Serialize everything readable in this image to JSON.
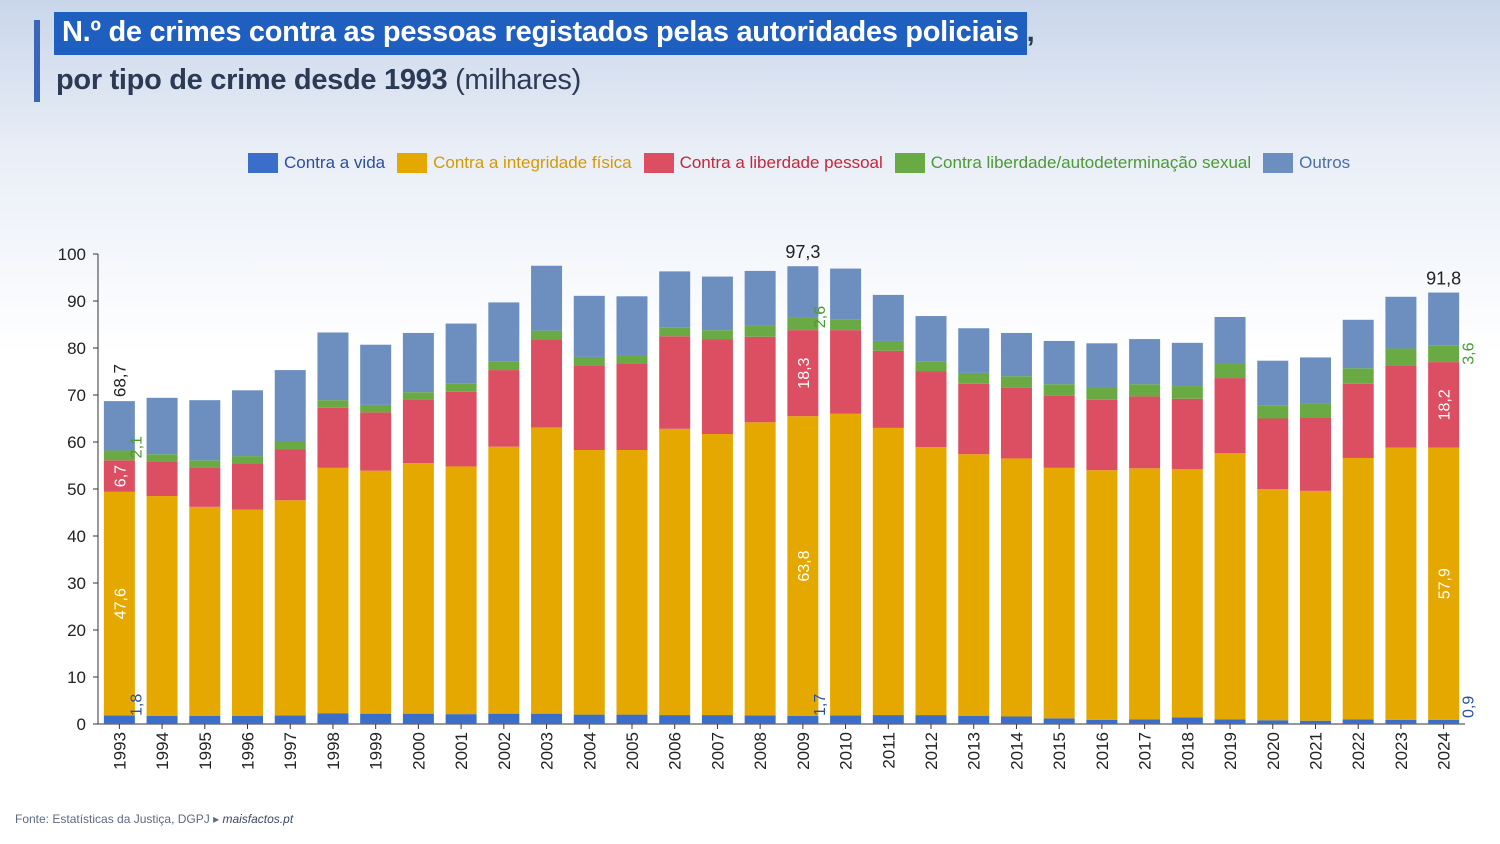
{
  "title": {
    "highlight": "N.º de crimes contra as pessoas registados pelas autoridades policiais",
    "highlight_suffix": ",",
    "line2_bold": "por tipo de crime desde 1993",
    "line2_unit": "(milhares)"
  },
  "source": {
    "text": "Fonte: Estatísticas da Justiça, DGPJ ▸",
    "site": "maisfactos.pt"
  },
  "chart_data": {
    "type": "bar",
    "stacked": true,
    "title": "N.º de crimes contra as pessoas registados pelas autoridades policiais, por tipo de crime desde 1993",
    "ylabel": "(milhares)",
    "ylim": [
      0,
      100
    ],
    "yticks": [
      "0",
      "10",
      "20",
      "30",
      "40",
      "50",
      "60",
      "70",
      "80",
      "90",
      "100"
    ],
    "categories": [
      "1993",
      "1994",
      "1995",
      "1996",
      "1997",
      "1998",
      "1999",
      "2000",
      "2001",
      "2002",
      "2003",
      "2004",
      "2005",
      "2006",
      "2007",
      "2008",
      "2009",
      "2010",
      "2011",
      "2012",
      "2013",
      "2014",
      "2015",
      "2016",
      "2017",
      "2018",
      "2019",
      "2020",
      "2021",
      "2022",
      "2023",
      "2024"
    ],
    "legend_position": "top",
    "grid": false,
    "series": [
      {
        "name": "Contra a vida",
        "color": "#3a6ec8",
        "label_color": "#2a4fa0",
        "values": [
          1.8,
          1.7,
          1.7,
          1.7,
          1.8,
          2.3,
          2.2,
          2.2,
          2.1,
          2.2,
          2.2,
          2.0,
          2.0,
          1.9,
          1.9,
          1.8,
          1.7,
          1.8,
          1.9,
          1.9,
          1.7,
          1.6,
          1.2,
          0.9,
          1.0,
          1.4,
          1.0,
          0.8,
          0.7,
          1.0,
          0.9,
          0.9
        ]
      },
      {
        "name": "Contra a integridade física",
        "color": "#e5a800",
        "label_color": "#d49a00",
        "values": [
          47.6,
          46.8,
          44.5,
          43.9,
          45.8,
          52.2,
          51.7,
          53.3,
          52.7,
          56.8,
          60.9,
          56.3,
          56.3,
          60.9,
          59.8,
          62.4,
          63.8,
          64.2,
          61.1,
          57.0,
          55.7,
          54.9,
          53.3,
          53.1,
          53.4,
          52.8,
          56.6,
          49.2,
          48.9,
          55.6,
          57.9,
          57.9
        ]
      },
      {
        "name": "Contra a liberdade pessoal",
        "color": "#dc4e61",
        "label_color": "#c4273c",
        "values": [
          6.7,
          7.4,
          8.4,
          9.9,
          10.9,
          12.8,
          12.4,
          13.6,
          15.9,
          16.3,
          18.6,
          18.0,
          18.3,
          19.7,
          20.2,
          18.2,
          18.3,
          17.8,
          16.4,
          16.1,
          15.0,
          15.0,
          15.3,
          15.0,
          15.3,
          15.0,
          16.0,
          15.0,
          15.6,
          15.8,
          17.5,
          18.2
        ]
      },
      {
        "name": "Contra liberdade/autodeterminação sexual",
        "color": "#6aaa45",
        "label_color": "#4a9a35",
        "values": [
          2.1,
          1.5,
          1.5,
          1.5,
          1.5,
          1.6,
          1.6,
          1.5,
          1.7,
          1.9,
          2.0,
          1.8,
          1.8,
          1.9,
          1.9,
          2.3,
          2.6,
          2.3,
          2.1,
          2.2,
          2.3,
          2.5,
          2.5,
          2.6,
          2.6,
          2.7,
          3.0,
          2.8,
          2.9,
          3.3,
          3.6,
          3.6
        ]
      },
      {
        "name": "Outros",
        "color": "#6d8fbf",
        "label_color": "#4a6fa8",
        "values": [
          10.5,
          12.0,
          12.8,
          14.0,
          15.3,
          14.4,
          12.8,
          12.6,
          12.8,
          12.5,
          13.8,
          13.0,
          12.6,
          11.9,
          11.4,
          11.7,
          11.0,
          10.8,
          9.8,
          9.6,
          9.5,
          9.2,
          9.2,
          9.4,
          9.6,
          9.2,
          10.0,
          9.5,
          9.9,
          10.3,
          11.0,
          11.2
        ]
      }
    ],
    "total_labels": [
      {
        "year": "1993",
        "text": "68,7"
      },
      {
        "year": "2009",
        "text": "97,3"
      },
      {
        "year": "2024",
        "text": "91,8"
      }
    ],
    "segment_labels": [
      {
        "year": "1993",
        "series": 0,
        "text": "1,8"
      },
      {
        "year": "1993",
        "series": 1,
        "text": "47,6"
      },
      {
        "year": "1993",
        "series": 2,
        "text": "6,7"
      },
      {
        "year": "1993",
        "series": 3,
        "text": "2,1"
      },
      {
        "year": "2009",
        "series": 0,
        "text": "1,7"
      },
      {
        "year": "2009",
        "series": 1,
        "text": "63,8"
      },
      {
        "year": "2009",
        "series": 2,
        "text": "18,3"
      },
      {
        "year": "2009",
        "series": 3,
        "text": "2,6"
      },
      {
        "year": "2024",
        "series": 0,
        "text": "0,9"
      },
      {
        "year": "2024",
        "series": 1,
        "text": "57,9"
      },
      {
        "year": "2024",
        "series": 2,
        "text": "18,2"
      },
      {
        "year": "2024",
        "series": 3,
        "text": "3,6"
      }
    ]
  }
}
